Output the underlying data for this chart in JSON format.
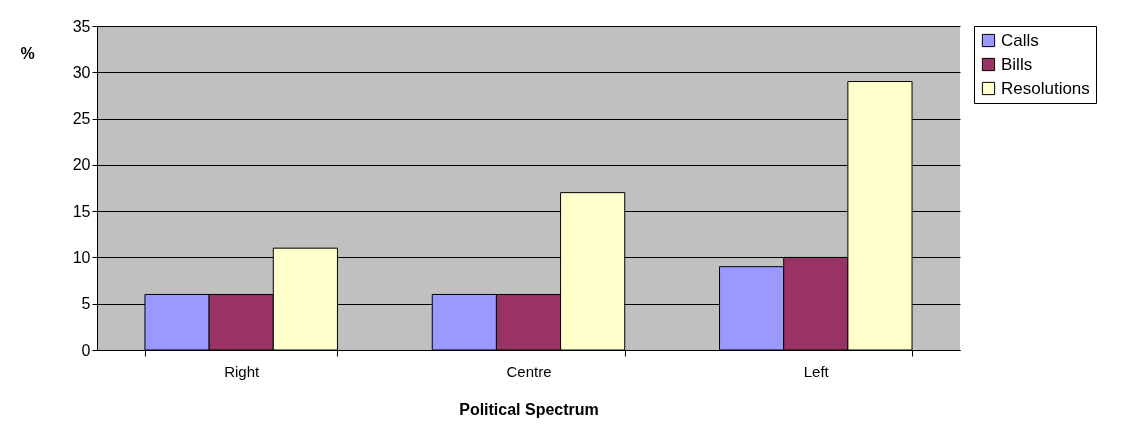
{
  "chart_data": {
    "type": "bar",
    "xlabel": "Political Spectrum",
    "ylabel": "%",
    "categories": [
      "Right",
      "Centre",
      "Left"
    ],
    "series": [
      {
        "name": "Calls",
        "color": "#9999ff",
        "values": [
          6,
          6,
          9
        ]
      },
      {
        "name": "Bills",
        "color": "#993366",
        "values": [
          6,
          6,
          10
        ]
      },
      {
        "name": "Resolutions",
        "color": "#ffffcc",
        "values": [
          11,
          17,
          29
        ]
      }
    ],
    "ylim": [
      0,
      35
    ],
    "yticks": [
      0,
      5,
      10,
      15,
      20,
      25,
      30,
      35
    ],
    "grid": true,
    "legend": "right"
  }
}
